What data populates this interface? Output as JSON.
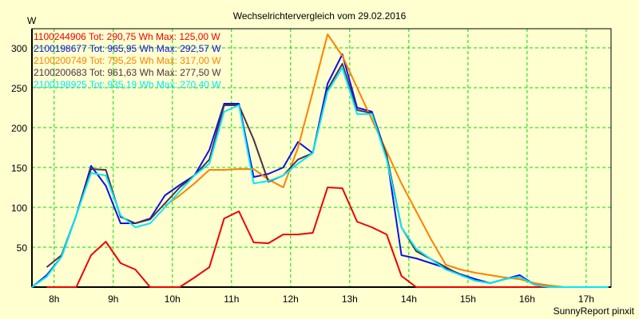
{
  "chart_data": {
    "type": "line",
    "title": "Wechselrichtervergleich vom 29.02.2016",
    "ylabel": "W",
    "xlabel": "",
    "footer": "SunnyReport pinxit",
    "ylim": [
      0,
      324
    ],
    "xlim": [
      7.625,
      17.42
    ],
    "grid": true,
    "legend_placement": "top-left",
    "yticks": [
      50,
      100,
      150,
      200,
      250,
      300
    ],
    "xticks": [
      {
        "value": 8,
        "label": "8h"
      },
      {
        "value": 9,
        "label": "9h"
      },
      {
        "value": 10,
        "label": "10h"
      },
      {
        "value": 11,
        "label": "11h"
      },
      {
        "value": 12,
        "label": "12h"
      },
      {
        "value": 13,
        "label": "13h"
      },
      {
        "value": 14,
        "label": "14h"
      },
      {
        "value": 15,
        "label": "15h"
      },
      {
        "value": 16,
        "label": "16h"
      },
      {
        "value": 17,
        "label": "17h"
      }
    ],
    "x_start": 7.625,
    "x_step": 0.25,
    "series": [
      {
        "name": "1100244906",
        "legend": "1100244906 Tot: 290,75 Wh Max: 125,00 W",
        "color": "#f00000",
        "values": [
          null,
          0,
          0,
          0,
          40,
          57,
          30,
          22,
          0,
          0,
          0,
          12,
          25,
          86,
          95,
          56,
          55,
          66,
          66,
          68,
          125,
          124,
          82,
          75,
          66,
          14,
          0,
          0,
          0,
          0,
          0,
          0,
          0,
          0,
          0,
          0,
          0,
          0,
          0,
          0
        ]
      },
      {
        "name": "2100198677",
        "legend": "2100198677 Tot: 965,95 Wh Max: 292,57 W",
        "color": "#1010e8",
        "values": [
          0,
          15,
          38,
          90,
          152,
          127,
          80,
          80,
          86,
          115,
          128,
          140,
          172,
          230,
          230,
          138,
          142,
          150,
          182,
          168,
          255,
          292,
          225,
          220,
          165,
          40,
          36,
          30,
          24,
          16,
          10,
          5,
          10,
          15,
          3,
          0,
          0,
          0,
          0,
          0
        ]
      },
      {
        "name": "2100200749",
        "legend": "2100200749 Tot: 795,25 Wh Max: 317,00 W",
        "color": "#ff8000",
        "values": [
          null,
          null,
          null,
          null,
          null,
          null,
          null,
          null,
          null,
          102,
          115,
          130,
          147,
          147,
          148,
          148,
          135,
          125,
          175,
          245,
          317,
          290,
          250,
          210,
          170,
          130,
          95,
          60,
          28,
          22,
          18,
          15,
          12,
          10,
          5,
          2,
          0,
          0,
          0,
          0
        ]
      },
      {
        "name": "2100200683",
        "legend": "2100200683 Tot: 961,63 Wh Max: 277,50 W",
        "color": "#503048",
        "values": [
          null,
          25,
          40,
          90,
          148,
          147,
          88,
          80,
          85,
          105,
          125,
          140,
          160,
          228,
          228,
          185,
          132,
          140,
          160,
          168,
          248,
          280,
          222,
          218,
          165,
          75,
          45,
          35,
          25,
          15,
          8,
          5,
          10,
          13,
          3,
          0,
          0,
          0,
          0,
          0
        ]
      },
      {
        "name": "2100198925",
        "legend": "2100198925 Tot: 935,19 Wh Max: 270,40 W",
        "color": "#00e8ff",
        "values": [
          0,
          13,
          38,
          90,
          143,
          140,
          90,
          75,
          80,
          100,
          120,
          140,
          155,
          220,
          228,
          130,
          133,
          140,
          155,
          168,
          245,
          275,
          217,
          217,
          160,
          75,
          48,
          35,
          22,
          15,
          8,
          5,
          10,
          13,
          3,
          0,
          0,
          0,
          0,
          0
        ]
      }
    ]
  }
}
